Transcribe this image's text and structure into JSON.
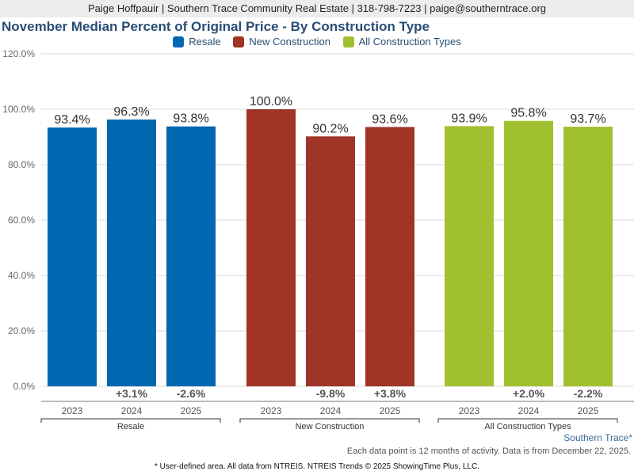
{
  "header": {
    "contact": "Paige Hoffpauir | Southern Trace Community Real Estate | 318-798-7223 | paige@southerntrace.org"
  },
  "chart_data": {
    "type": "bar",
    "title": "November Median Percent of Original Price - By Construction Type",
    "xlabel": "",
    "ylabel": "",
    "ylim": [
      0,
      120
    ],
    "yticks": [
      "0.0%",
      "20.0%",
      "40.0%",
      "60.0%",
      "80.0%",
      "100.0%",
      "120.0%"
    ],
    "ytick_values": [
      0,
      20,
      40,
      60,
      80,
      100,
      120
    ],
    "grid": true,
    "legend_position": "top-center",
    "groups": [
      {
        "name": "Resale",
        "color": "#0068b0",
        "categories": [
          "2023",
          "2024",
          "2025"
        ],
        "values": [
          93.4,
          96.3,
          93.8
        ],
        "value_labels": [
          "93.4%",
          "96.3%",
          "93.8%"
        ],
        "changes": [
          "",
          "+3.1%",
          "-2.6%"
        ]
      },
      {
        "name": "New Construction",
        "color": "#9f3427",
        "categories": [
          "2023",
          "2024",
          "2025"
        ],
        "values": [
          100.0,
          90.2,
          93.6
        ],
        "value_labels": [
          "100.0%",
          "90.2%",
          "93.6%"
        ],
        "changes": [
          "",
          "-9.8%",
          "+3.8%"
        ]
      },
      {
        "name": "All Construction Types",
        "color": "#a1c02f",
        "categories": [
          "2023",
          "2024",
          "2025"
        ],
        "values": [
          93.9,
          95.8,
          93.7
        ],
        "value_labels": [
          "93.9%",
          "95.8%",
          "93.7%"
        ],
        "changes": [
          "",
          "+2.0%",
          "-2.2%"
        ]
      }
    ]
  },
  "legend": [
    {
      "label": "Resale",
      "color": "#0068b0"
    },
    {
      "label": "New Construction",
      "color": "#9f3427"
    },
    {
      "label": "All Construction Types",
      "color": "#a1c02f"
    }
  ],
  "footer": {
    "area": "Southern Trace*",
    "note": "Each data point is 12 months of activity. Data is from December 22, 2025.",
    "disclaimer": "* User-defined area. All data from NTREIS. NTREIS Trends © 2025 ShowingTime Plus, LLC."
  }
}
